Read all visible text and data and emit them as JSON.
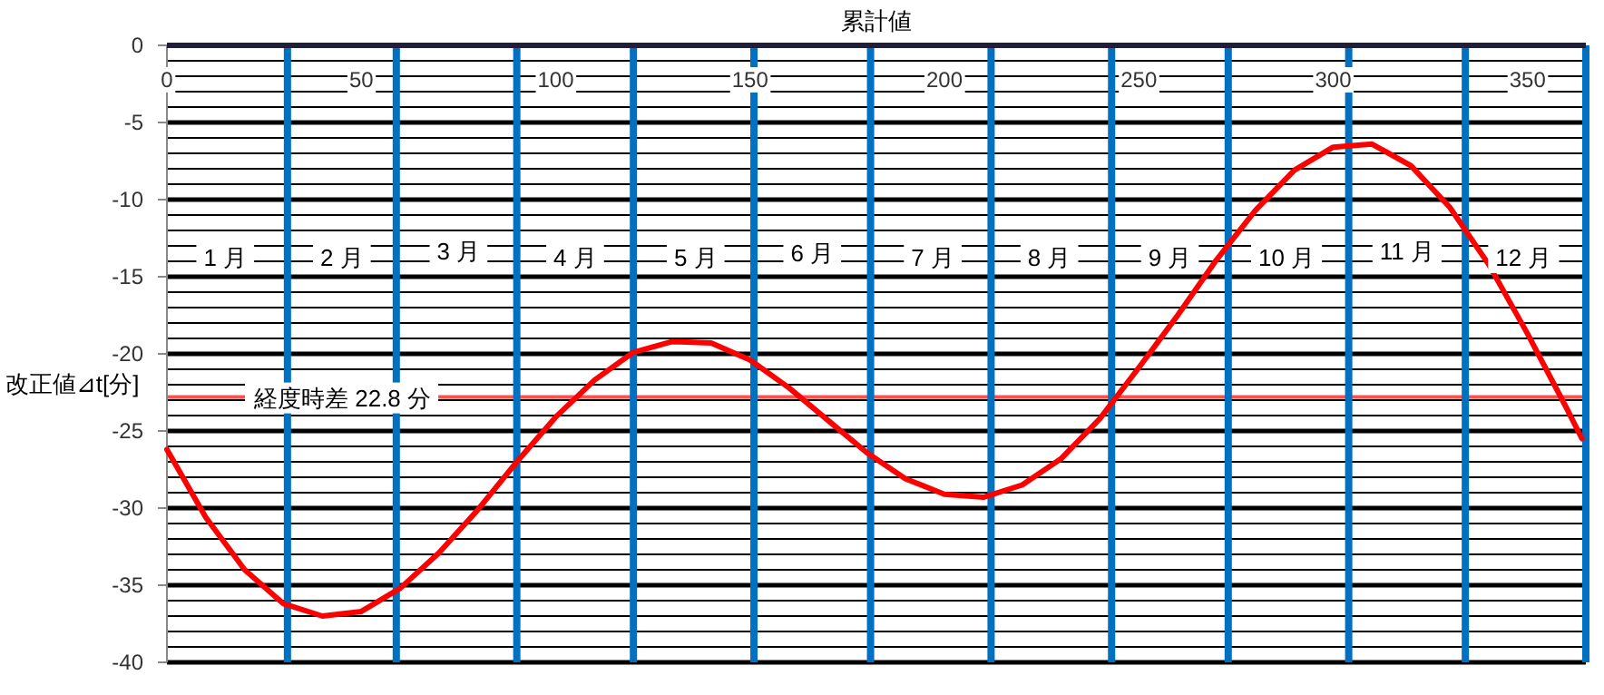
{
  "chart_data": {
    "type": "line",
    "xlabel": "累計値",
    "ylabel": "改正値⊿t[分]",
    "x": [
      0,
      10,
      20,
      30,
      40,
      50,
      60,
      70,
      80,
      90,
      100,
      110,
      120,
      130,
      140,
      150,
      160,
      170,
      180,
      190,
      200,
      210,
      220,
      230,
      240,
      250,
      260,
      270,
      280,
      290,
      300,
      310,
      320,
      330,
      340,
      350,
      360,
      364
    ],
    "series": [
      {
        "color": "#ff0000",
        "values": [
          -26.2,
          -30.6,
          -34.0,
          -36.2,
          -37.0,
          -36.7,
          -35.2,
          -32.9,
          -30.1,
          -27.0,
          -24.1,
          -21.7,
          -19.9,
          -19.2,
          -19.3,
          -20.4,
          -22.2,
          -24.3,
          -26.4,
          -28.1,
          -29.1,
          -29.3,
          -28.5,
          -26.8,
          -24.2,
          -20.9,
          -17.5,
          -13.9,
          -10.7,
          -8.1,
          -6.6,
          -6.4,
          -7.8,
          -10.5,
          -14.2,
          -18.7,
          -23.5,
          -25.5
        ]
      }
    ],
    "xlim": [
      0,
      365
    ],
    "ylim": [
      -40,
      0
    ],
    "xticks": [
      0,
      50,
      100,
      150,
      200,
      250,
      300,
      350
    ],
    "yticks": [
      0,
      {
        "value": -1,
        "label": null
      },
      {
        "value": -2,
        "label": null
      },
      {
        "value": -3,
        "label": null
      },
      {
        "value": -4,
        "label": null
      },
      -5,
      {
        "value": -6,
        "label": null
      },
      {
        "value": -7,
        "label": null
      },
      {
        "value": -8,
        "label": null
      },
      {
        "value": -9,
        "label": null
      },
      -10,
      {
        "value": -11,
        "label": null
      },
      {
        "value": -12,
        "label": null
      },
      {
        "value": -13,
        "label": null
      },
      {
        "value": -14,
        "label": null
      },
      -15,
      {
        "value": -16,
        "label": null
      },
      {
        "value": -17,
        "label": null
      },
      {
        "value": -18,
        "label": null
      },
      {
        "value": -19,
        "label": null
      },
      -20,
      {
        "value": -21,
        "label": null
      },
      {
        "value": -22,
        "label": null
      },
      {
        "value": -23,
        "label": null
      },
      {
        "value": -24,
        "label": null
      },
      -25,
      {
        "value": -26,
        "label": null
      },
      {
        "value": -27,
        "label": null
      },
      {
        "value": -28,
        "label": null
      },
      {
        "value": -29,
        "label": null
      },
      -30,
      {
        "value": -31,
        "label": null
      },
      {
        "value": -32,
        "label": null
      },
      {
        "value": -33,
        "label": null
      },
      {
        "value": -34,
        "label": null
      },
      -35,
      {
        "value": -36,
        "label": null
      },
      {
        "value": -37,
        "label": null
      },
      {
        "value": -38,
        "label": null
      },
      {
        "value": -39,
        "label": null
      },
      -40
    ],
    "grid": "y",
    "marker": "none",
    "line_style": "solid",
    "ref_lines": [
      {
        "axis": "y",
        "value": -22.8,
        "label": "経度時差 22.8 分",
        "color": "#ff5050"
      },
      {
        "axis": "x",
        "value": 31,
        "color": "#0070c0"
      },
      {
        "axis": "x",
        "value": 59,
        "color": "#0070c0"
      },
      {
        "axis": "x",
        "value": 90,
        "color": "#0070c0"
      },
      {
        "axis": "x",
        "value": 120,
        "color": "#0070c0"
      },
      {
        "axis": "x",
        "value": 151,
        "color": "#0070c0"
      },
      {
        "axis": "x",
        "value": 181,
        "color": "#0070c0"
      },
      {
        "axis": "x",
        "value": 212,
        "color": "#0070c0"
      },
      {
        "axis": "x",
        "value": 243,
        "color": "#0070c0"
      },
      {
        "axis": "x",
        "value": 273,
        "color": "#0070c0"
      },
      {
        "axis": "x",
        "value": 304,
        "color": "#0070c0"
      },
      {
        "axis": "x",
        "value": 334,
        "color": "#0070c0"
      },
      {
        "axis": "x",
        "value": 365,
        "color": "#0070c0"
      }
    ],
    "annotations": [
      {
        "text": "1 月",
        "x": 15,
        "y": -13.7
      },
      {
        "text": "2 月",
        "x": 45,
        "y": -13.7
      },
      {
        "text": "3 月",
        "x": 75,
        "y": -13.3
      },
      {
        "text": "4 月",
        "x": 105,
        "y": -13.7
      },
      {
        "text": "5 月",
        "x": 136,
        "y": -13.7
      },
      {
        "text": "6 月",
        "x": 166,
        "y": -13.4
      },
      {
        "text": "7 月",
        "x": 197,
        "y": -13.7
      },
      {
        "text": "8 月",
        "x": 227,
        "y": -13.7
      },
      {
        "text": "9 月",
        "x": 258,
        "y": -13.7
      },
      {
        "text": "10 月",
        "x": 288,
        "y": -13.7
      },
      {
        "text": "11 月",
        "x": 319,
        "y": -13.3
      },
      {
        "text": "12 月",
        "x": 349,
        "y": -13.7
      }
    ]
  }
}
